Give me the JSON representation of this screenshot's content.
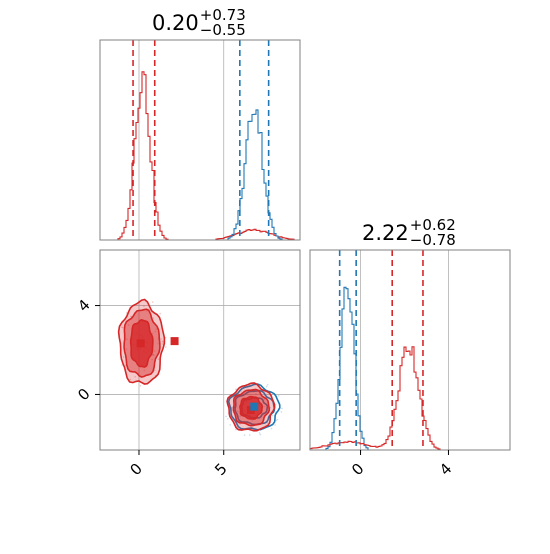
{
  "titles": [
    {
      "value": "0.20",
      "plus": "+0.73",
      "minus": "−0.55"
    },
    {
      "value": "2.22",
      "plus": "+0.62",
      "minus": "−0.78"
    }
  ],
  "colors": {
    "red": "#d62728",
    "blue": "#1f77b4",
    "grid": "#b0b0b0",
    "frame": "#808080"
  },
  "chart_data": [
    {
      "type": "histogram",
      "panel": "x-marginal",
      "x_range": [
        -2.3,
        9.5
      ],
      "title": "0.20 +0.73 −0.55",
      "red_quantile_lines": [
        -0.35,
        0.93
      ],
      "blue_quantile_lines": [
        5.95,
        7.65
      ],
      "grid_x": [
        0,
        5
      ],
      "series": [
        {
          "name": "",
          "color": "red",
          "peak_x": 0.2,
          "peak_height": 0.82,
          "sigma": 0.45,
          "secondary_bump": {
            "x": 6.8,
            "height": 0.05,
            "sigma": 1.0
          }
        },
        {
          "name": "",
          "color": "blue",
          "peak_x": 6.8,
          "peak_height": 0.68,
          "sigma": 0.5
        }
      ]
    },
    {
      "type": "histogram",
      "panel": "y-marginal",
      "x_range": [
        -2.3,
        6.8
      ],
      "x_ticks": [
        "0",
        "4"
      ],
      "x_tick_values": [
        0,
        4
      ],
      "grid_x": [
        0,
        4
      ],
      "title": "2.22 +0.62 −0.78",
      "red_quantile_lines": [
        1.44,
        2.84
      ],
      "blue_quantile_lines": [
        -0.95,
        -0.2
      ],
      "series": [
        {
          "name": "",
          "color": "blue",
          "peak_x": -0.6,
          "peak_height": 0.88,
          "sigma": 0.3
        },
        {
          "name": "",
          "color": "red",
          "peak_x": 2.2,
          "peak_height": 0.53,
          "sigma": 0.45,
          "secondary_bump": {
            "x": -0.6,
            "height": 0.04,
            "sigma": 0.9
          }
        }
      ]
    },
    {
      "type": "scatter",
      "panel": "joint",
      "x_range": [
        -2.3,
        9.5
      ],
      "y_range": [
        -2.5,
        6.5
      ],
      "x_ticks": [
        "0",
        "5"
      ],
      "x_tick_values": [
        0,
        5
      ],
      "y_ticks": [
        "0",
        "4"
      ],
      "y_tick_values": [
        0,
        4
      ],
      "grid_x": [
        0,
        5
      ],
      "grid_y": [
        0,
        4
      ],
      "red_contours": [
        {
          "cx": 0.15,
          "cy": 2.3,
          "rx": [
            1.3,
            1.05,
            0.65
          ],
          "ry": [
            1.85,
            1.5,
            1.05
          ]
        },
        {
          "cx": 6.6,
          "cy": -0.6,
          "rx": [
            1.35,
            1.05,
            0.65
          ],
          "ry": [
            1.05,
            0.8,
            0.5
          ]
        }
      ],
      "blue_contours": [
        {
          "cx": 6.8,
          "cy": -0.6,
          "rx": [
            1.45,
            1.15,
            0.75
          ],
          "ry": [
            1.0,
            0.75,
            0.45
          ]
        }
      ],
      "markers": [
        {
          "color": "red",
          "x": 0.1,
          "y": 2.3
        },
        {
          "color": "red",
          "x": 2.1,
          "y": 2.4
        },
        {
          "color": "red",
          "x": 6.6,
          "y": -0.7
        },
        {
          "color": "blue",
          "x": 6.8,
          "y": -0.55
        }
      ]
    }
  ]
}
